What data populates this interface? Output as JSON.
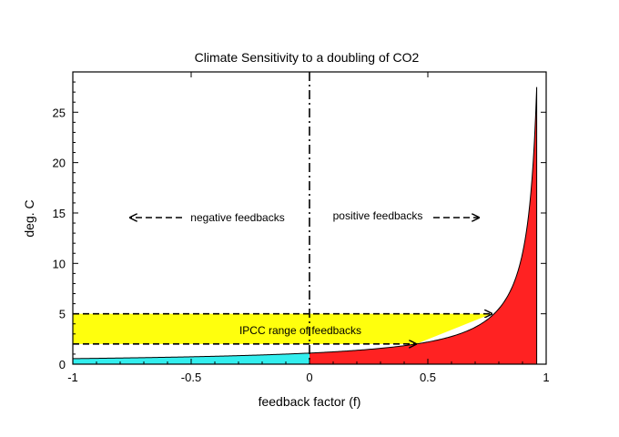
{
  "chart_data": {
    "type": "area",
    "title": "Climate Sensitivity to a doubling of CO2",
    "xlabel": "feedback factor (f)",
    "ylabel": "deg. C",
    "xlim": [
      -1,
      1
    ],
    "ylim": [
      0,
      29
    ],
    "xticks": [
      -1,
      -0.5,
      0,
      0.5,
      1
    ],
    "xtick_labels": [
      "-1",
      "-0.5",
      "0",
      "0.5",
      "1"
    ],
    "yticks": [
      0,
      5,
      10,
      15,
      20,
      25
    ],
    "ytick_labels": [
      "0",
      "5",
      "10",
      "15",
      "20",
      "25"
    ],
    "grid": false,
    "curve": {
      "formula": "y = 1.1 / (1 - f)",
      "x": [
        -1,
        -0.75,
        -0.5,
        -0.25,
        0,
        0.25,
        0.5,
        0.6,
        0.7,
        0.75,
        0.8,
        0.85,
        0.9,
        0.93,
        0.95,
        0.96
      ],
      "y": [
        0.55,
        0.63,
        0.73,
        0.88,
        1.1,
        1.47,
        2.2,
        2.75,
        3.67,
        4.4,
        5.5,
        7.33,
        11.0,
        15.7,
        22.0,
        27.5
      ]
    },
    "regions": [
      {
        "name": "negative feedback area",
        "x_range": [
          -1,
          0
        ],
        "color": "#33eeee"
      },
      {
        "name": "positive feedback area",
        "x_range": [
          0,
          0.96
        ],
        "color": "#ff2222"
      }
    ],
    "ipcc_band": {
      "y_range": [
        2.0,
        5.0
      ],
      "color": "#ffff00",
      "label": "IPCC range of feedbacks"
    },
    "ipcc_arrows": [
      {
        "y": 2.0,
        "x_end": 0.45
      },
      {
        "y": 5.0,
        "x_end": 0.77
      }
    ],
    "divider": {
      "x": 0
    },
    "annotations": [
      {
        "text": "negative feedbacks",
        "arrow": "left"
      },
      {
        "text": "positive feedbacks",
        "arrow": "right"
      }
    ]
  }
}
